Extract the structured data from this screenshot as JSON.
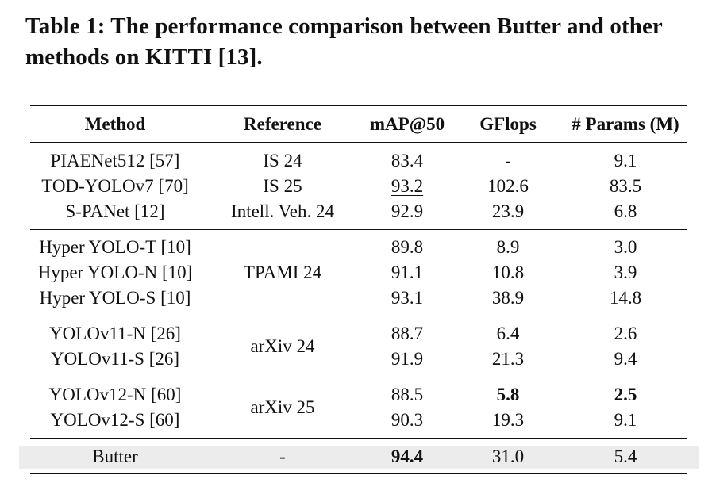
{
  "caption": "Table 1: The performance comparison between Butter and other methods on KITTI [13].",
  "headers": [
    "Method",
    "Reference",
    "mAP@50",
    "GFlops",
    "# Params (M)"
  ],
  "rows": [
    {
      "method": "PIAENet512 [57]",
      "reference": "IS 24",
      "map50": "83.4",
      "gflops": "-",
      "params": "9.1"
    },
    {
      "method": "TOD-YOLOv7 [70]",
      "reference": "IS 25",
      "map50": "93.2",
      "gflops": "102.6",
      "params": "83.5"
    },
    {
      "method": "S-PANet [12]",
      "reference": "Intell. Veh. 24",
      "map50": "92.9",
      "gflops": "23.9",
      "params": "6.8"
    },
    {
      "method": "Hyper YOLO-T [10]",
      "reference": "",
      "map50": "89.8",
      "gflops": "8.9",
      "params": "3.0"
    },
    {
      "method": "Hyper YOLO-N [10]",
      "reference": "TPAMI 24",
      "map50": "91.1",
      "gflops": "10.8",
      "params": "3.9"
    },
    {
      "method": "Hyper YOLO-S [10]",
      "reference": "",
      "map50": "93.1",
      "gflops": "38.9",
      "params": "14.8"
    },
    {
      "method": "YOLOv11-N [26]",
      "reference": "arXiv 24",
      "map50": "88.7",
      "gflops": "6.4",
      "params": "2.6"
    },
    {
      "method": "YOLOv11-S [26]",
      "reference": "",
      "map50": "91.9",
      "gflops": "21.3",
      "params": "9.4"
    },
    {
      "method": "YOLOv12-N [60]",
      "reference": "arXiv 25",
      "map50": "88.5",
      "gflops": "5.8",
      "params": "2.5"
    },
    {
      "method": "YOLOv12-S [60]",
      "reference": "",
      "map50": "90.3",
      "gflops": "19.3",
      "params": "9.1"
    },
    {
      "method": "Butter",
      "reference": "-",
      "map50": "94.4",
      "gflops": "31.0",
      "params": "5.4"
    }
  ],
  "formatting": {
    "underlined_second_best": "TOD-YOLOv7 [70] mAP@50",
    "bold_best": [
      "Butter mAP@50",
      "YOLOv12-N [60] GFlops",
      "YOLOv12-N [60] # Params (M)"
    ],
    "highlighted_row": "Butter",
    "highlight_color": "#ececec"
  }
}
